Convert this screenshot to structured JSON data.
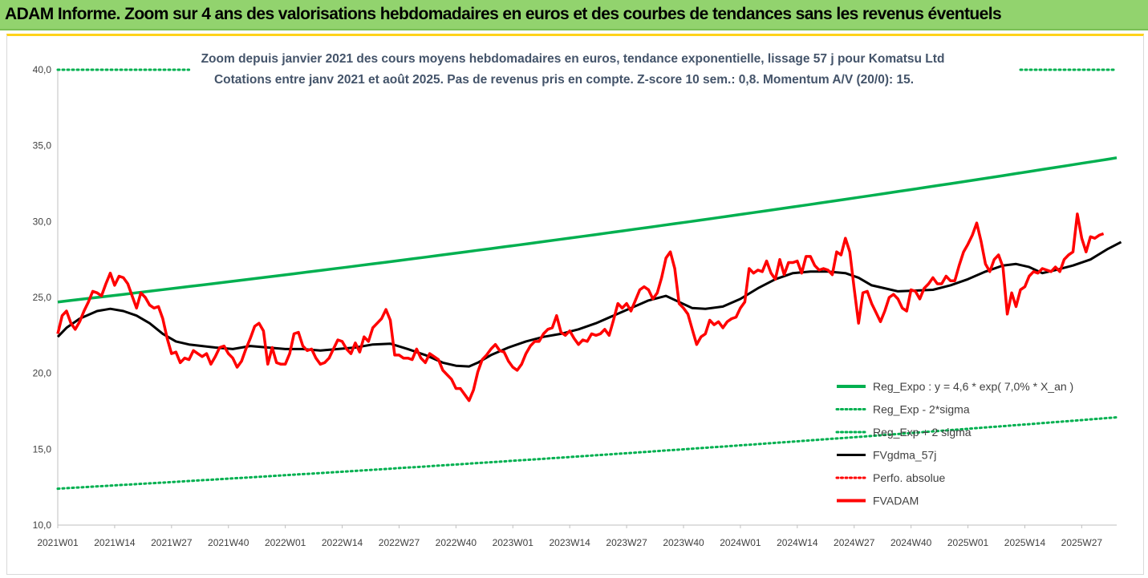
{
  "header": {
    "title": "ADAM Informe. Zoom sur 4 ans des valorisations hebdomadaires en euros et des courbes de tendances sans les revenus éventuels"
  },
  "chart_data": {
    "type": "line",
    "title_line1": "Zoom depuis janvier 2021 des cours moyens hebdomadaires en euros, tendance exponentielle, lissage 57 j pour Komatsu Ltd",
    "title_line2": "Cotations entre janv 2021 et août 2025. Pas de revenus pris en compte. Z-score 10 sem.: 0,8. Momentum A/V (20/0): 15.",
    "ylim": [
      10,
      40
    ],
    "yticks": [
      "10,0",
      "15,0",
      "20,0",
      "25,0",
      "30,0",
      "35,0",
      "40,0"
    ],
    "x_tick_labels": [
      "2021W01",
      "2021W14",
      "2021W27",
      "2021W40",
      "2022W01",
      "2022W14",
      "2022W27",
      "2022W40",
      "2023W01",
      "2023W14",
      "2023W27",
      "2023W40",
      "2024W01",
      "2024W14",
      "2024W27",
      "2024W40",
      "2025W01",
      "2025W14",
      "2025W27"
    ],
    "x_tick_index": [
      0,
      13,
      26,
      39,
      52,
      65,
      78,
      91,
      104,
      117,
      130,
      143,
      156,
      169,
      182,
      195,
      208,
      221,
      234
    ],
    "n_weeks": 243,
    "colors": {
      "reg_expo": "#00b050",
      "sigma_minus": "#00b050",
      "sigma_plus": "#00b050",
      "fvgdma": "#000000",
      "perfo": "#ff0000",
      "fvadam": "#ff0000"
    },
    "legend": [
      {
        "key": "reg_expo",
        "label": "Reg_Expo : y = 4,6 * exp( 7,0% *  X_an )",
        "style": "solid-thick"
      },
      {
        "key": "sigma_minus",
        "label": "Reg_Exp - 2*sigma",
        "style": "dotted"
      },
      {
        "key": "sigma_plus",
        "label": "Reg_Exp + 2 sigma",
        "style": "dotted"
      },
      {
        "key": "fvgdma",
        "label": "FVgdma_57j",
        "style": "solid"
      },
      {
        "key": "perfo",
        "label": "Perfo. absolue",
        "style": "dotted"
      },
      {
        "key": "fvadam",
        "label": "FVADAM",
        "style": "solid-thick"
      }
    ],
    "series": {
      "reg_expo": {
        "start": 24.7,
        "end": 34.2
      },
      "sigma_minus": {
        "start": 12.4,
        "end": 17.1
      },
      "sigma_plus": {
        "value": 40.0,
        "segments": [
          [
            0,
            30
          ],
          [
            220,
            242
          ]
        ]
      },
      "fvgdma_points": [
        [
          0,
          22.4
        ],
        [
          2,
          23.0
        ],
        [
          5,
          23.6
        ],
        [
          9,
          24.1
        ],
        [
          12,
          24.25
        ],
        [
          15,
          24.1
        ],
        [
          18,
          23.8
        ],
        [
          21,
          23.3
        ],
        [
          24,
          22.6
        ],
        [
          27,
          22.1
        ],
        [
          30,
          21.9
        ],
        [
          33,
          21.8
        ],
        [
          36,
          21.7
        ],
        [
          40,
          21.6
        ],
        [
          44,
          21.8
        ],
        [
          48,
          21.7
        ],
        [
          52,
          21.6
        ],
        [
          56,
          21.6
        ],
        [
          60,
          21.5
        ],
        [
          64,
          21.6
        ],
        [
          68,
          21.7
        ],
        [
          72,
          21.9
        ],
        [
          76,
          21.95
        ],
        [
          80,
          21.6
        ],
        [
          84,
          21.2
        ],
        [
          88,
          20.7
        ],
        [
          91,
          20.5
        ],
        [
          94,
          20.45
        ],
        [
          96,
          20.7
        ],
        [
          99,
          21.2
        ],
        [
          103,
          21.7
        ],
        [
          107,
          22.1
        ],
        [
          111,
          22.4
        ],
        [
          115,
          22.6
        ],
        [
          119,
          22.9
        ],
        [
          123,
          23.3
        ],
        [
          127,
          23.8
        ],
        [
          131,
          24.3
        ],
        [
          135,
          24.8
        ],
        [
          139,
          25.1
        ],
        [
          142,
          24.7
        ],
        [
          145,
          24.3
        ],
        [
          148,
          24.25
        ],
        [
          152,
          24.4
        ],
        [
          156,
          24.9
        ],
        [
          160,
          25.6
        ],
        [
          164,
          26.2
        ],
        [
          168,
          26.6
        ],
        [
          172,
          26.7
        ],
        [
          176,
          26.7
        ],
        [
          180,
          26.6
        ],
        [
          183,
          26.3
        ],
        [
          186,
          25.8
        ],
        [
          189,
          25.6
        ],
        [
          192,
          25.4
        ],
        [
          196,
          25.45
        ],
        [
          200,
          25.5
        ],
        [
          204,
          25.8
        ],
        [
          208,
          26.2
        ],
        [
          212,
          26.7
        ],
        [
          216,
          27.1
        ],
        [
          219,
          27.2
        ],
        [
          222,
          27.0
        ],
        [
          225,
          26.6
        ],
        [
          228,
          26.8
        ],
        [
          232,
          27.1
        ],
        [
          236,
          27.5
        ],
        [
          240,
          28.2
        ],
        [
          243,
          28.65
        ]
      ],
      "fvadam_points": [
        [
          0,
          22.6
        ],
        [
          1,
          23.8
        ],
        [
          2,
          24.1
        ],
        [
          3,
          23.3
        ],
        [
          4,
          22.9
        ],
        [
          5,
          23.4
        ],
        [
          6,
          24.1
        ],
        [
          7,
          24.7
        ],
        [
          8,
          25.4
        ],
        [
          9,
          25.3
        ],
        [
          10,
          25.1
        ],
        [
          11,
          25.9
        ],
        [
          12,
          26.6
        ],
        [
          13,
          25.8
        ],
        [
          14,
          26.4
        ],
        [
          15,
          26.3
        ],
        [
          16,
          25.9
        ],
        [
          17,
          25.1
        ],
        [
          18,
          24.3
        ],
        [
          19,
          25.3
        ],
        [
          20,
          25.0
        ],
        [
          21,
          24.5
        ],
        [
          22,
          24.3
        ],
        [
          23,
          24.4
        ],
        [
          24,
          23.6
        ],
        [
          25,
          22.3
        ],
        [
          26,
          21.3
        ],
        [
          27,
          21.4
        ],
        [
          28,
          20.7
        ],
        [
          29,
          21.0
        ],
        [
          30,
          20.9
        ],
        [
          31,
          21.5
        ],
        [
          32,
          21.3
        ],
        [
          33,
          21.1
        ],
        [
          34,
          21.3
        ],
        [
          35,
          20.6
        ],
        [
          36,
          21.1
        ],
        [
          37,
          21.7
        ],
        [
          38,
          21.8
        ],
        [
          39,
          21.3
        ],
        [
          40,
          21.0
        ],
        [
          41,
          20.4
        ],
        [
          42,
          20.8
        ],
        [
          43,
          21.6
        ],
        [
          44,
          22.3
        ],
        [
          45,
          23.1
        ],
        [
          46,
          23.3
        ],
        [
          47,
          22.8
        ],
        [
          48,
          20.6
        ],
        [
          49,
          21.7
        ],
        [
          50,
          20.7
        ],
        [
          51,
          20.6
        ],
        [
          52,
          20.6
        ],
        [
          53,
          21.3
        ],
        [
          54,
          22.6
        ],
        [
          55,
          22.7
        ],
        [
          56,
          21.8
        ],
        [
          57,
          21.5
        ],
        [
          58,
          21.6
        ],
        [
          59,
          21.0
        ],
        [
          60,
          20.6
        ],
        [
          61,
          20.7
        ],
        [
          62,
          21.0
        ],
        [
          63,
          21.6
        ],
        [
          64,
          22.2
        ],
        [
          65,
          22.1
        ],
        [
          66,
          21.6
        ],
        [
          67,
          21.3
        ],
        [
          68,
          22.0
        ],
        [
          69,
          21.4
        ],
        [
          70,
          22.4
        ],
        [
          71,
          22.1
        ],
        [
          72,
          23.0
        ],
        [
          73,
          23.3
        ],
        [
          74,
          23.6
        ],
        [
          75,
          24.2
        ],
        [
          76,
          23.5
        ],
        [
          77,
          21.2
        ],
        [
          78,
          21.2
        ],
        [
          79,
          21.0
        ],
        [
          80,
          21.0
        ],
        [
          81,
          20.9
        ],
        [
          82,
          21.6
        ],
        [
          83,
          21.0
        ],
        [
          84,
          20.7
        ],
        [
          85,
          21.3
        ],
        [
          86,
          21.1
        ],
        [
          87,
          20.9
        ],
        [
          88,
          20.2
        ],
        [
          89,
          19.9
        ],
        [
          90,
          19.6
        ],
        [
          91,
          19.0
        ],
        [
          92,
          19.0
        ],
        [
          93,
          18.6
        ],
        [
          94,
          18.2
        ],
        [
          95,
          18.9
        ],
        [
          96,
          20.1
        ],
        [
          97,
          20.9
        ],
        [
          98,
          21.2
        ],
        [
          99,
          21.6
        ],
        [
          100,
          21.9
        ],
        [
          101,
          21.5
        ],
        [
          102,
          21.4
        ],
        [
          103,
          20.8
        ],
        [
          104,
          20.4
        ],
        [
          105,
          20.2
        ],
        [
          106,
          20.6
        ],
        [
          107,
          21.3
        ],
        [
          108,
          21.8
        ],
        [
          109,
          22.1
        ],
        [
          110,
          22.1
        ],
        [
          111,
          22.6
        ],
        [
          112,
          22.9
        ],
        [
          113,
          23.0
        ],
        [
          114,
          23.8
        ],
        [
          115,
          22.7
        ],
        [
          116,
          22.5
        ],
        [
          117,
          22.8
        ],
        [
          118,
          22.3
        ],
        [
          119,
          21.9
        ],
        [
          120,
          22.2
        ],
        [
          121,
          22.1
        ],
        [
          122,
          22.6
        ],
        [
          123,
          22.5
        ],
        [
          124,
          22.6
        ],
        [
          125,
          22.9
        ],
        [
          126,
          22.5
        ],
        [
          127,
          23.5
        ],
        [
          128,
          24.6
        ],
        [
          129,
          24.3
        ],
        [
          130,
          24.6
        ],
        [
          131,
          24.1
        ],
        [
          132,
          24.8
        ],
        [
          133,
          25.5
        ],
        [
          134,
          25.7
        ],
        [
          135,
          25.5
        ],
        [
          136,
          24.9
        ],
        [
          137,
          25.3
        ],
        [
          138,
          26.3
        ],
        [
          139,
          27.6
        ],
        [
          140,
          28.0
        ],
        [
          141,
          26.9
        ],
        [
          142,
          24.6
        ],
        [
          143,
          24.3
        ],
        [
          144,
          23.9
        ],
        [
          145,
          22.9
        ],
        [
          146,
          21.9
        ],
        [
          147,
          22.4
        ],
        [
          148,
          22.6
        ],
        [
          149,
          23.5
        ],
        [
          150,
          23.2
        ],
        [
          151,
          23.4
        ],
        [
          152,
          23.0
        ],
        [
          153,
          23.4
        ],
        [
          154,
          23.6
        ],
        [
          155,
          23.7
        ],
        [
          156,
          24.3
        ],
        [
          157,
          24.7
        ],
        [
          158,
          26.9
        ],
        [
          159,
          26.6
        ],
        [
          160,
          26.8
        ],
        [
          161,
          26.7
        ],
        [
          162,
          27.4
        ],
        [
          163,
          26.6
        ],
        [
          164,
          26.2
        ],
        [
          165,
          27.5
        ],
        [
          166,
          26.5
        ],
        [
          167,
          27.3
        ],
        [
          168,
          27.3
        ],
        [
          169,
          27.4
        ],
        [
          170,
          26.6
        ],
        [
          171,
          27.7
        ],
        [
          172,
          27.7
        ],
        [
          173,
          27.1
        ],
        [
          174,
          26.8
        ],
        [
          175,
          26.9
        ],
        [
          176,
          26.8
        ],
        [
          177,
          26.5
        ],
        [
          178,
          28.0
        ],
        [
          179,
          27.8
        ],
        [
          180,
          28.9
        ],
        [
          181,
          28.0
        ],
        [
          182,
          25.6
        ],
        [
          183,
          23.3
        ],
        [
          184,
          25.3
        ],
        [
          185,
          25.4
        ],
        [
          186,
          24.6
        ],
        [
          187,
          24.0
        ],
        [
          188,
          23.4
        ],
        [
          189,
          24.1
        ],
        [
          190,
          25.0
        ],
        [
          191,
          25.2
        ],
        [
          192,
          24.9
        ],
        [
          193,
          24.3
        ],
        [
          194,
          24.1
        ],
        [
          195,
          25.5
        ],
        [
          196,
          25.4
        ],
        [
          197,
          24.9
        ],
        [
          198,
          25.6
        ],
        [
          199,
          25.9
        ],
        [
          200,
          26.3
        ],
        [
          201,
          25.9
        ],
        [
          202,
          25.9
        ],
        [
          203,
          26.4
        ],
        [
          204,
          26.1
        ],
        [
          205,
          26.1
        ],
        [
          206,
          27.1
        ],
        [
          207,
          28.0
        ],
        [
          208,
          28.5
        ],
        [
          209,
          29.1
        ],
        [
          210,
          29.9
        ],
        [
          211,
          28.7
        ],
        [
          212,
          27.2
        ],
        [
          213,
          26.7
        ],
        [
          214,
          27.5
        ],
        [
          215,
          27.8
        ],
        [
          216,
          27.0
        ],
        [
          217,
          23.9
        ],
        [
          218,
          25.3
        ],
        [
          219,
          24.4
        ],
        [
          220,
          25.5
        ],
        [
          221,
          25.7
        ],
        [
          222,
          26.4
        ],
        [
          223,
          26.7
        ],
        [
          224,
          26.6
        ],
        [
          225,
          26.9
        ],
        [
          226,
          26.8
        ],
        [
          227,
          26.7
        ],
        [
          228,
          27.0
        ],
        [
          229,
          26.7
        ],
        [
          230,
          27.5
        ],
        [
          231,
          27.8
        ],
        [
          232,
          28.0
        ],
        [
          233,
          30.5
        ],
        [
          234,
          28.9
        ],
        [
          235,
          28.0
        ],
        [
          236,
          29.0
        ],
        [
          237,
          28.9
        ],
        [
          238,
          29.1
        ],
        [
          239,
          29.2
        ]
      ]
    }
  }
}
